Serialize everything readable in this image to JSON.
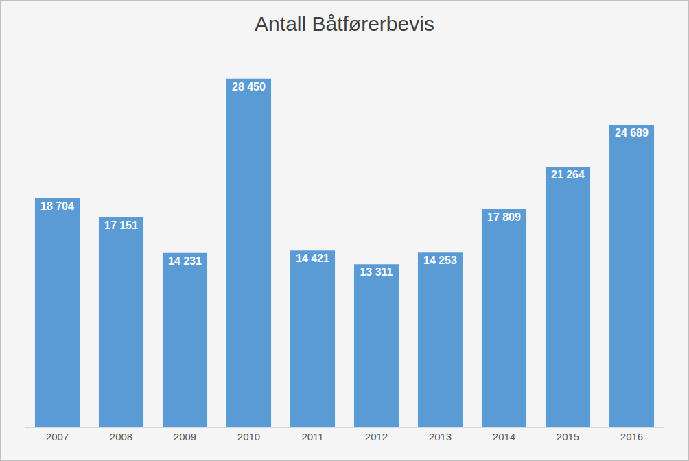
{
  "chart_data": {
    "type": "bar",
    "title": "Antall Båtførerbevis",
    "categories": [
      "2007",
      "2008",
      "2009",
      "2010",
      "2011",
      "2012",
      "2013",
      "2014",
      "2015",
      "2016"
    ],
    "values": [
      18704,
      17151,
      14231,
      28450,
      14421,
      13311,
      14253,
      17809,
      21264,
      24689
    ],
    "value_labels": [
      "18 704",
      "17 151",
      "14 231",
      "28 450",
      "14 421",
      "13 311",
      "14 253",
      "17 809",
      "21 264",
      "24 689"
    ],
    "color": "#5b9bd5",
    "ylim": [
      0,
      30000
    ],
    "grid": false,
    "data_labels": true,
    "tick_labels": "x"
  }
}
